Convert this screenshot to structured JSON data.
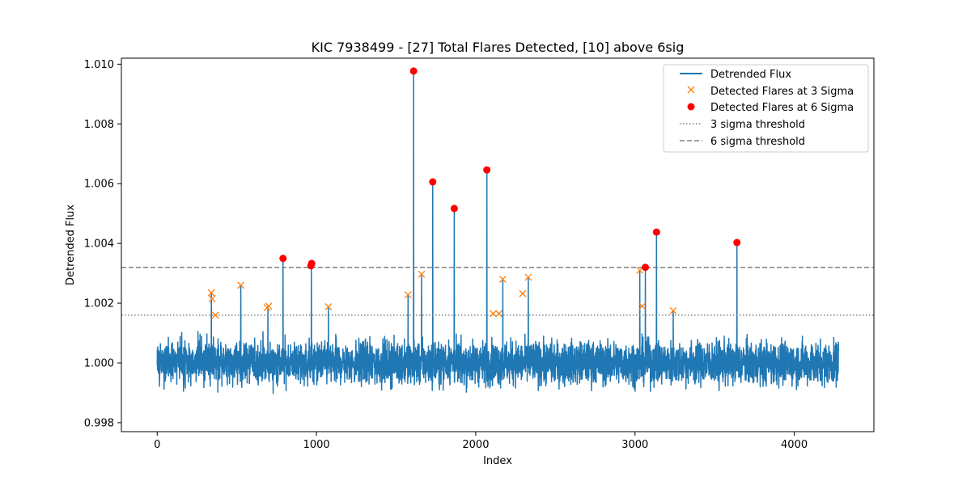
{
  "chart_data": {
    "type": "line",
    "title": "KIC 7938499 - [27] Total Flares Detected, [10] above 6sig",
    "xlabel": "Index",
    "ylabel": "Detrended Flux",
    "xlim": [
      -225,
      4500
    ],
    "ylim": [
      0.9977,
      1.0102
    ],
    "x_ticks": [
      0,
      1000,
      2000,
      3000,
      4000
    ],
    "x_tick_labels": [
      "0",
      "1000",
      "2000",
      "3000",
      "4000"
    ],
    "y_ticks": [
      0.998,
      1.0,
      1.002,
      1.004,
      1.006,
      1.008,
      1.01
    ],
    "y_tick_labels": [
      "0.998",
      "1.000",
      "1.002",
      "1.004",
      "1.006",
      "1.008",
      "1.010"
    ],
    "grid": false,
    "legend_position": "top-right",
    "legend": [
      {
        "label": "Detrended Flux",
        "style": "line"
      },
      {
        "label": "Detected Flares at 3 Sigma",
        "style": "x-marker"
      },
      {
        "label": "Detected Flares at 6 Sigma",
        "style": "dot"
      },
      {
        "label": "3 sigma threshold",
        "style": "dotted"
      },
      {
        "label": "6 sigma threshold",
        "style": "dashed"
      }
    ],
    "colors": {
      "flux": "#1f77b4",
      "flare_3sigma": "#ff7f0e",
      "flare_6sigma": "#ff0000",
      "threshold": "#808080"
    },
    "thresholds": {
      "sigma_3": 1.0016,
      "sigma_6": 1.0032
    },
    "flux_series": {
      "n_points": 4280,
      "baseline": 1.0,
      "noise_range": [
        0.9984,
        1.0015
      ]
    },
    "flares_3sigma": [
      {
        "x": 340,
        "y": 1.00235
      },
      {
        "x": 345,
        "y": 1.00215
      },
      {
        "x": 365,
        "y": 1.0016
      },
      {
        "x": 525,
        "y": 1.0026
      },
      {
        "x": 690,
        "y": 1.00185
      },
      {
        "x": 700,
        "y": 1.0019
      },
      {
        "x": 1075,
        "y": 1.00188
      },
      {
        "x": 1575,
        "y": 1.00228
      },
      {
        "x": 1660,
        "y": 1.00297
      },
      {
        "x": 2110,
        "y": 1.00165
      },
      {
        "x": 2145,
        "y": 1.00165
      },
      {
        "x": 2170,
        "y": 1.0028
      },
      {
        "x": 2295,
        "y": 1.00232
      },
      {
        "x": 2330,
        "y": 1.00287
      },
      {
        "x": 3030,
        "y": 1.0031
      },
      {
        "x": 3045,
        "y": 1.0019
      },
      {
        "x": 3240,
        "y": 1.00175
      }
    ],
    "flares_6sigma": [
      {
        "x": 790,
        "y": 1.0035
      },
      {
        "x": 965,
        "y": 1.00325
      },
      {
        "x": 970,
        "y": 1.00333
      },
      {
        "x": 1610,
        "y": 1.00977
      },
      {
        "x": 1730,
        "y": 1.00606
      },
      {
        "x": 1865,
        "y": 1.00517
      },
      {
        "x": 2070,
        "y": 1.00646
      },
      {
        "x": 3065,
        "y": 1.0032
      },
      {
        "x": 3135,
        "y": 1.00438
      },
      {
        "x": 3640,
        "y": 1.00403
      }
    ],
    "spikes": [
      {
        "x": 340,
        "y": 1.00235
      },
      {
        "x": 525,
        "y": 1.0026
      },
      {
        "x": 695,
        "y": 1.0019
      },
      {
        "x": 790,
        "y": 1.0035
      },
      {
        "x": 968,
        "y": 1.00333
      },
      {
        "x": 1075,
        "y": 1.00188
      },
      {
        "x": 1575,
        "y": 1.00228
      },
      {
        "x": 1610,
        "y": 1.00977
      },
      {
        "x": 1660,
        "y": 1.00297
      },
      {
        "x": 1730,
        "y": 1.00606
      },
      {
        "x": 1865,
        "y": 1.00517
      },
      {
        "x": 2070,
        "y": 1.00646
      },
      {
        "x": 2170,
        "y": 1.0028
      },
      {
        "x": 2330,
        "y": 1.00287
      },
      {
        "x": 3030,
        "y": 1.0031
      },
      {
        "x": 3065,
        "y": 1.0032
      },
      {
        "x": 3135,
        "y": 1.00438
      },
      {
        "x": 3240,
        "y": 1.00175
      },
      {
        "x": 3640,
        "y": 1.00403
      }
    ]
  }
}
